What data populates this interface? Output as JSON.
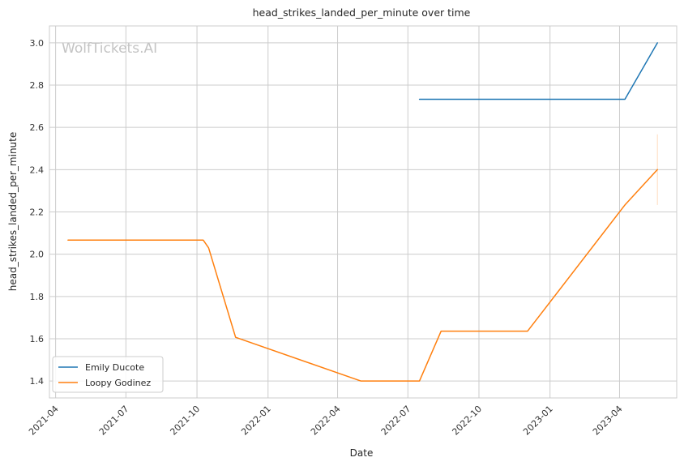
{
  "chart_data": {
    "type": "line",
    "title": "head_strikes_landed_per_minute over time",
    "xlabel": "Date",
    "ylabel": "head_strikes_landed_per_minute",
    "watermark": "WolfTickets.AI",
    "x_tick_labels": [
      "2021-04",
      "2021-07",
      "2021-10",
      "2022-01",
      "2022-04",
      "2022-07",
      "2022-10",
      "2023-01",
      "2023-04"
    ],
    "y_tick_labels": [
      "1.4",
      "1.6",
      "1.8",
      "2.0",
      "2.2",
      "2.4",
      "2.6",
      "2.8",
      "3.0"
    ],
    "xlim": [
      "2021-03-24",
      "2023-06-14"
    ],
    "ylim": [
      1.32,
      3.08
    ],
    "grid": true,
    "legend_position": "lower-left",
    "series": [
      {
        "name": "Emily Ducote",
        "color": "#1f77b4",
        "points": [
          {
            "x": "2022-07-16",
            "y": 2.733
          },
          {
            "x": "2023-04-08",
            "y": 2.733
          },
          {
            "x": "2023-05-20",
            "y": 3.0
          }
        ]
      },
      {
        "name": "Loopy Godinez",
        "color": "#ff7f0e",
        "points": [
          {
            "x": "2021-04-17",
            "y": 2.067
          },
          {
            "x": "2021-10-09",
            "y": 2.067
          },
          {
            "x": "2021-10-16",
            "y": 2.03
          },
          {
            "x": "2021-11-20",
            "y": 1.607
          },
          {
            "x": "2022-05-01",
            "y": 1.4
          },
          {
            "x": "2022-07-16",
            "y": 1.4
          },
          {
            "x": "2022-08-13",
            "y": 1.636
          },
          {
            "x": "2022-12-03",
            "y": 1.636
          },
          {
            "x": "2023-04-08",
            "y": 2.233
          },
          {
            "x": "2023-05-20",
            "y": 2.4
          }
        ],
        "error_band": {
          "x": "2023-05-20",
          "low": 2.233,
          "high": 2.567
        }
      }
    ]
  }
}
